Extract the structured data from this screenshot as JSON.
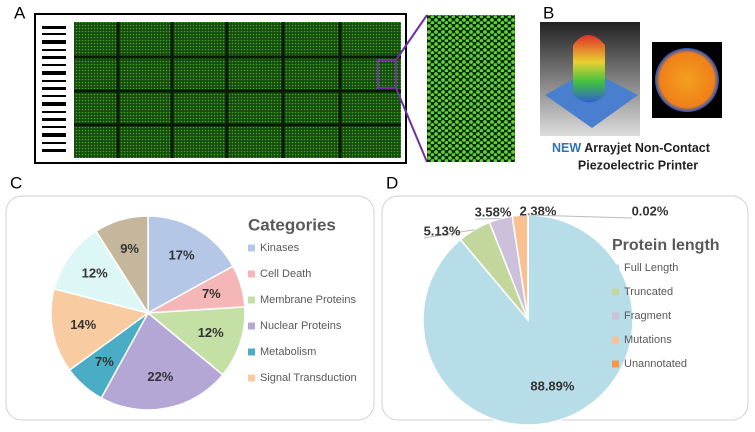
{
  "panels": {
    "a": "A",
    "b": "B",
    "c": "C",
    "d": "D"
  },
  "caption": {
    "new": "NEW",
    "line1": "Arrayjet Non-Contact",
    "line2": "Piezoelectric Printer"
  },
  "chart_data": [
    {
      "type": "pie",
      "title": "Categories",
      "categories": [
        "Kinases",
        "Cell Death",
        "Membrane Proteins",
        "Nuclear Proteins",
        "Metabolism",
        "Signal Transduction",
        null,
        null
      ],
      "values": [
        17,
        7,
        12,
        22,
        7,
        14,
        12,
        9
      ],
      "value_labels": [
        "17%",
        "7%",
        "12%",
        "22%",
        "7%",
        "14%",
        "12%",
        "9%"
      ],
      "colors": [
        "#b4c7e7",
        "#f4b6b6",
        "#c5e0a5",
        "#b4a7d6",
        "#4bacc6",
        "#f8cba0",
        "#ddf7f7",
        "#c4b79b"
      ]
    },
    {
      "type": "pie",
      "title": "Protein length",
      "categories": [
        "Full Length",
        "Truncated",
        "Fragment",
        "Mutations",
        "Unannotated"
      ],
      "values": [
        88.89,
        5.13,
        3.58,
        2.38,
        0.02
      ],
      "value_labels": [
        "88.89%",
        "5.13%",
        "3.58%",
        "2.38%",
        "0.02%"
      ],
      "colors": [
        "#b7dde8",
        "#c3d69b",
        "#ccc0da",
        "#fac090",
        "#f79646"
      ]
    }
  ]
}
